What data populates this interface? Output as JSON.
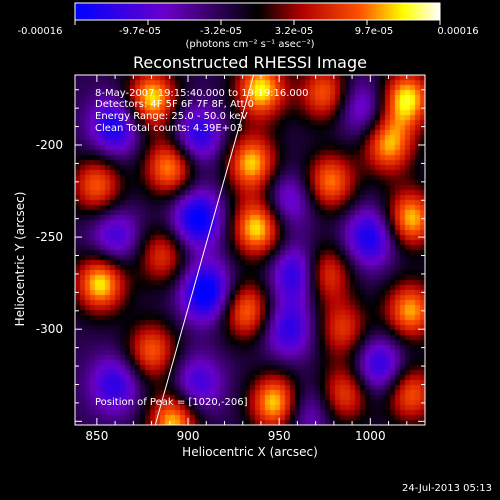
{
  "colorbar": {
    "ticks": [
      "-0.00016",
      "-9.7e-05",
      "-3.2e-05",
      "3.2e-05",
      "9.7e-05",
      "0.00016"
    ],
    "unit_label": "(photons cm⁻² s⁻¹ asec⁻²)"
  },
  "info": {
    "time_range": "8-May-2007 19:15:40.000 to 19:19:16.000",
    "detectors": "Detectors: 4F 5F 6F 7F 8F, Att 0",
    "energy": "Energy Range: 25.0 - 50.0 keV",
    "clean": "Clean    Total counts: 4.39E+03"
  },
  "peak_label": "Position of Peak = [1020,-206]",
  "footer": "24-Jul-2013 05:13",
  "chart_data": {
    "type": "heatmap",
    "title": "Reconstructed RHESSI Image",
    "xlabel": "Heliocentric X (arcsec)",
    "ylabel": "Heliocentric Y (arcsec)",
    "xlim": [
      838,
      1030
    ],
    "ylim": [
      -352,
      -162
    ],
    "xticks": [
      "850",
      "900",
      "950",
      "1000"
    ],
    "yticks": [
      "-200",
      "-250",
      "-300"
    ],
    "colorbar_range": [
      -0.00016,
      0.00016
    ],
    "colorscale": [
      "#0000ff",
      "#6a00c8",
      "#000000",
      "#b00000",
      "#ff5000",
      "#ffff00",
      "#ffffff"
    ],
    "limb_line": {
      "x": [
        882,
        936
      ],
      "y": [
        -352,
        -162
      ]
    },
    "peak_position": [
      1020,
      -206
    ],
    "blobs": [
      {
        "x": 880,
        "y": -175,
        "v": 0.00016
      },
      {
        "x": 940,
        "y": -170,
        "v": 0.00016
      },
      {
        "x": 975,
        "y": -172,
        "v": 0.00012
      },
      {
        "x": 1020,
        "y": -175,
        "v": 0.00016
      },
      {
        "x": 1010,
        "y": -200,
        "v": 0.00014
      },
      {
        "x": 1022,
        "y": -240,
        "v": 0.00015
      },
      {
        "x": 1022,
        "y": -290,
        "v": 0.00014
      },
      {
        "x": 1022,
        "y": -335,
        "v": 0.00012
      },
      {
        "x": 850,
        "y": -222,
        "v": 0.00012
      },
      {
        "x": 852,
        "y": -275,
        "v": 0.00016
      },
      {
        "x": 890,
        "y": -212,
        "v": 0.00014
      },
      {
        "x": 886,
        "y": -260,
        "v": 0.0001
      },
      {
        "x": 880,
        "y": -312,
        "v": 0.00012
      },
      {
        "x": 892,
        "y": -350,
        "v": 0.00015
      },
      {
        "x": 935,
        "y": -210,
        "v": 0.00015
      },
      {
        "x": 938,
        "y": -245,
        "v": 0.00016
      },
      {
        "x": 932,
        "y": -290,
        "v": 0.00013
      },
      {
        "x": 948,
        "y": -340,
        "v": 0.00016
      },
      {
        "x": 978,
        "y": -220,
        "v": 0.00013
      },
      {
        "x": 975,
        "y": -270,
        "v": 0.00012
      },
      {
        "x": 985,
        "y": -300,
        "v": 0.0001
      },
      {
        "x": 986,
        "y": -335,
        "v": 0.00011
      },
      {
        "x": 860,
        "y": -190,
        "v": -0.00012
      },
      {
        "x": 905,
        "y": -195,
        "v": -0.00011
      },
      {
        "x": 905,
        "y": -240,
        "v": -0.00014
      },
      {
        "x": 860,
        "y": -250,
        "v": -9e-05
      },
      {
        "x": 910,
        "y": -280,
        "v": -0.00015
      },
      {
        "x": 955,
        "y": -230,
        "v": -8e-05
      },
      {
        "x": 960,
        "y": -270,
        "v": -0.00012
      },
      {
        "x": 955,
        "y": -300,
        "v": -0.0001
      },
      {
        "x": 1000,
        "y": -250,
        "v": -0.00012
      },
      {
        "x": 905,
        "y": -330,
        "v": -9e-05
      },
      {
        "x": 860,
        "y": -330,
        "v": -0.0001
      },
      {
        "x": 995,
        "y": -180,
        "v": -8e-05
      },
      {
        "x": 1005,
        "y": -320,
        "v": -0.00011
      },
      {
        "x": 965,
        "y": -345,
        "v": -7e-05
      }
    ]
  }
}
